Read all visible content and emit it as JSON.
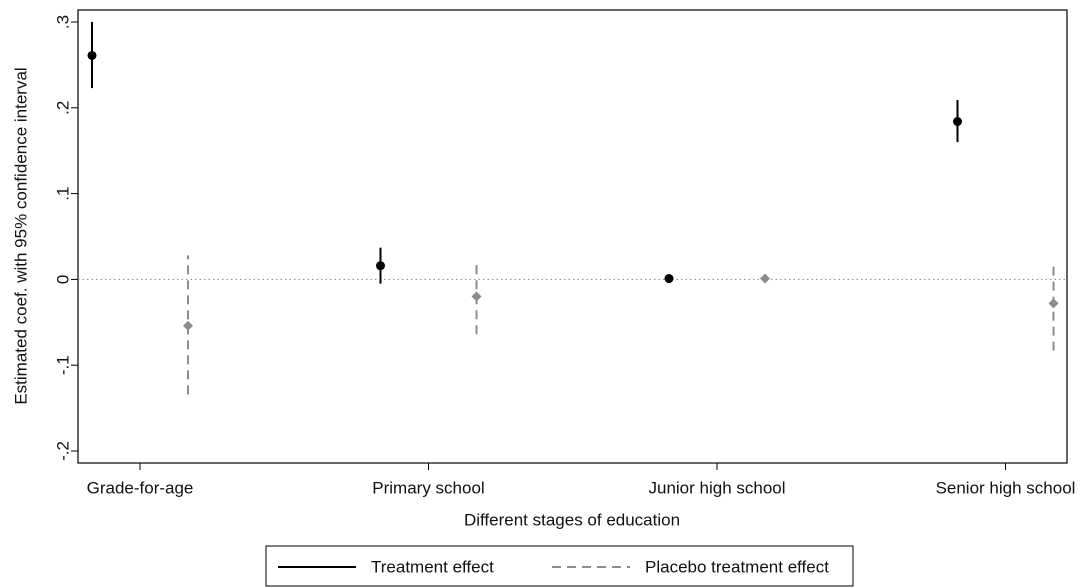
{
  "chart_data": {
    "type": "errorbar",
    "x_label": "Different stages of education",
    "y_label": "Estimated coef. with 95% confidence interval",
    "categories": [
      "Grade-for-age",
      "Primary school",
      "Junior high school",
      "Senior high school"
    ],
    "ylim": [
      -0.214,
      0.314
    ],
    "yticks": [
      {
        "value": -0.2,
        "label": "-.2"
      },
      {
        "value": -0.1,
        "label": "-.1"
      },
      0,
      {
        "value": 0.1,
        "label": ".1"
      },
      {
        "value": 0.2,
        "label": ".2"
      },
      {
        "value": 0.3,
        "label": ".3"
      }
    ],
    "reference_line": 0,
    "legend": "bottom",
    "series": [
      {
        "name": "Treatment effect",
        "color": "#000000",
        "marker": "circle",
        "dashed": false,
        "values": [
          0.261,
          0.016,
          0.001,
          0.184
        ],
        "lower": [
          0.223,
          -0.005,
          0.0,
          0.16
        ],
        "upper": [
          0.3,
          0.037,
          0.002,
          0.209
        ]
      },
      {
        "name": "Placebo treatment effect",
        "color": "#8c8c8c",
        "marker": "diamond",
        "dashed": true,
        "values": [
          -0.054,
          -0.02,
          0.001,
          -0.028
        ],
        "lower": [
          -0.134,
          -0.064,
          0.0,
          -0.083
        ],
        "upper": [
          0.028,
          0.018,
          0.002,
          0.02
        ]
      }
    ]
  }
}
